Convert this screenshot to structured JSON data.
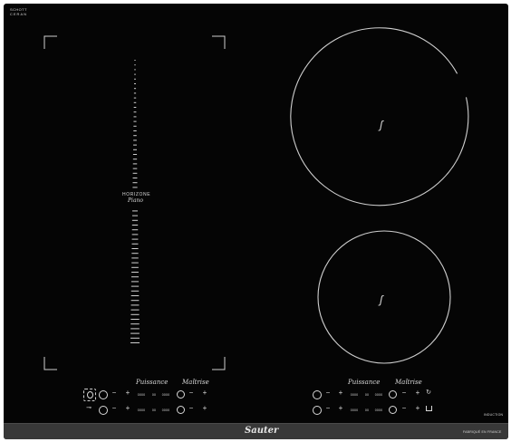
{
  "brand": {
    "maker_line1": "SCHOTT",
    "maker_line2": "CERAN",
    "name": "Sauter",
    "origin": "FABRIQUÉ EN FRANCE",
    "tech": "INDUCTION"
  },
  "horizone": {
    "name": "HORIZONE",
    "subtitle": "Piano"
  },
  "panel_left": {
    "label_power": "Puissance",
    "label_master": "Maîtrise",
    "row1": {
      "minus": "−",
      "plus": "+",
      "step1": "0000",
      "step2": "00",
      "step3": "0000",
      "m_minus": "−",
      "m_plus": "+"
    },
    "row2": {
      "minus": "−",
      "plus": "+",
      "step1": "0000",
      "step2": "00",
      "step3": "0000",
      "m_minus": "−",
      "m_plus": "+"
    }
  },
  "panel_right": {
    "label_power": "Puissance",
    "label_master": "Maîtrise",
    "row1": {
      "minus": "−",
      "plus": "+",
      "step1": "0000",
      "step2": "00",
      "step3": "0000",
      "m_minus": "−",
      "m_plus": "+"
    },
    "row2": {
      "minus": "−",
      "plus": "+",
      "step1": "0000",
      "step2": "00",
      "step3": "0000",
      "m_minus": "−",
      "m_plus": "+"
    }
  },
  "zones": {
    "large_symbol": "ʃ",
    "small_symbol": "ʃ"
  },
  "colors": {
    "glass": "#050505",
    "print": "#d8d8d8",
    "band": "#383838"
  }
}
